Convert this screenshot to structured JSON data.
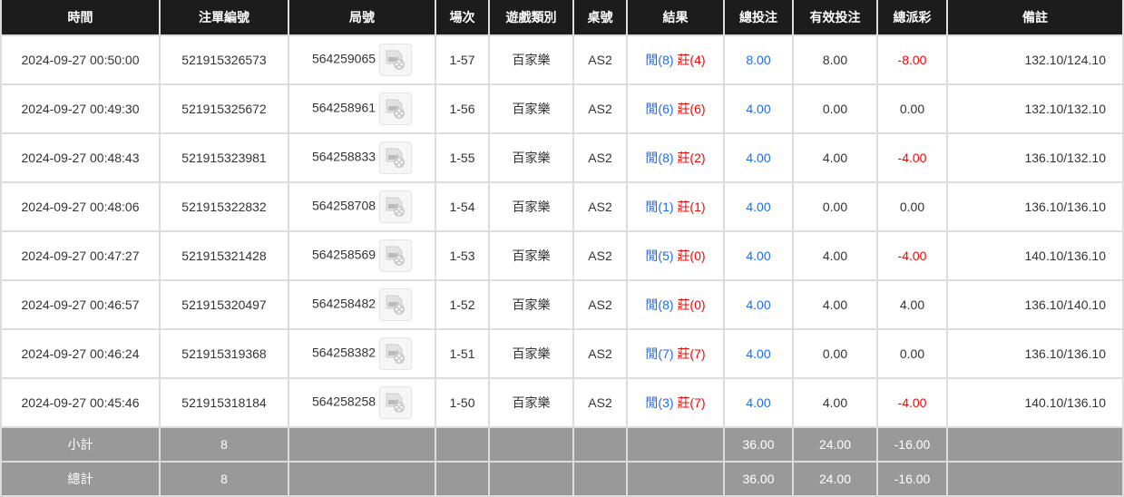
{
  "headers": [
    "時間",
    "注單編號",
    "局號",
    "場次",
    "遊戲類別",
    "桌號",
    "結果",
    "總投注",
    "有效投注",
    "總派彩",
    "備註"
  ],
  "rows": [
    {
      "time": "2024-09-27 00:50:00",
      "bet_id": "521915326573",
      "round": "564259065",
      "session": "1-57",
      "game": "百家樂",
      "table": "AS2",
      "player": "閒(8)",
      "banker": "莊(4)",
      "total": "8.00",
      "valid": "8.00",
      "payout": "-8.00",
      "remark": "132.10/124.10"
    },
    {
      "time": "2024-09-27 00:49:30",
      "bet_id": "521915325672",
      "round": "564258961",
      "session": "1-56",
      "game": "百家樂",
      "table": "AS2",
      "player": "閒(6)",
      "banker": "莊(6)",
      "total": "4.00",
      "valid": "0.00",
      "payout": "0.00",
      "remark": "132.10/132.10"
    },
    {
      "time": "2024-09-27 00:48:43",
      "bet_id": "521915323981",
      "round": "564258833",
      "session": "1-55",
      "game": "百家樂",
      "table": "AS2",
      "player": "閒(8)",
      "banker": "莊(2)",
      "total": "4.00",
      "valid": "4.00",
      "payout": "-4.00",
      "remark": "136.10/132.10"
    },
    {
      "time": "2024-09-27 00:48:06",
      "bet_id": "521915322832",
      "round": "564258708",
      "session": "1-54",
      "game": "百家樂",
      "table": "AS2",
      "player": "閒(1)",
      "banker": "莊(1)",
      "total": "4.00",
      "valid": "0.00",
      "payout": "0.00",
      "remark": "136.10/136.10"
    },
    {
      "time": "2024-09-27 00:47:27",
      "bet_id": "521915321428",
      "round": "564258569",
      "session": "1-53",
      "game": "百家樂",
      "table": "AS2",
      "player": "閒(5)",
      "banker": "莊(0)",
      "total": "4.00",
      "valid": "4.00",
      "payout": "-4.00",
      "remark": "140.10/136.10"
    },
    {
      "time": "2024-09-27 00:46:57",
      "bet_id": "521915320497",
      "round": "564258482",
      "session": "1-52",
      "game": "百家樂",
      "table": "AS2",
      "player": "閒(8)",
      "banker": "莊(0)",
      "total": "4.00",
      "valid": "4.00",
      "payout": "4.00",
      "remark": "136.10/140.10"
    },
    {
      "time": "2024-09-27 00:46:24",
      "bet_id": "521915319368",
      "round": "564258382",
      "session": "1-51",
      "game": "百家樂",
      "table": "AS2",
      "player": "閒(7)",
      "banker": "莊(7)",
      "total": "4.00",
      "valid": "0.00",
      "payout": "0.00",
      "remark": "136.10/136.10"
    },
    {
      "time": "2024-09-27 00:45:46",
      "bet_id": "521915318184",
      "round": "564258258",
      "session": "1-50",
      "game": "百家樂",
      "table": "AS2",
      "player": "閒(3)",
      "banker": "莊(7)",
      "total": "4.00",
      "valid": "4.00",
      "payout": "-4.00",
      "remark": "140.10/136.10"
    }
  ],
  "subtotal": {
    "label": "小計",
    "count": "8",
    "total": "36.00",
    "valid": "24.00",
    "payout": "-16.00"
  },
  "grandtotal": {
    "label": "總計",
    "count": "8",
    "total": "36.00",
    "valid": "24.00",
    "payout": "-16.00"
  },
  "colors": {
    "header_bg": "#1c1c1c",
    "footer_bg": "#999999",
    "blue": "#1a6cff",
    "red": "#ff0000"
  },
  "icons": {
    "replay": "video-replay-icon"
  }
}
